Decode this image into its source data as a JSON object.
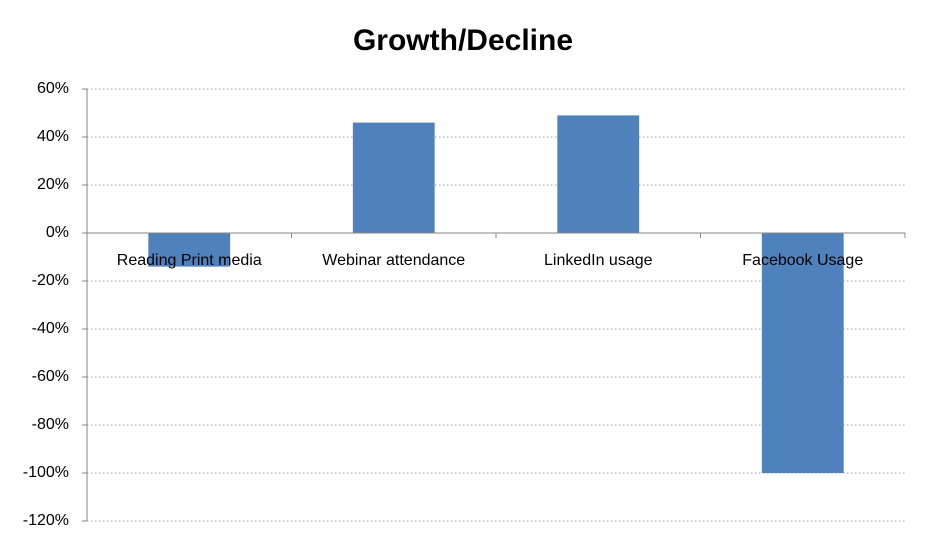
{
  "chart_data": {
    "type": "bar",
    "title": "Growth/Decline",
    "categories": [
      "Reading Print media",
      "Webinar attendance",
      "LinkedIn usage",
      "Facebook Usage"
    ],
    "values": [
      -14,
      46,
      49,
      -100
    ],
    "color": "#4f81bd",
    "ylim": [
      -120,
      60
    ],
    "yticks": [
      {
        "value": -120,
        "label": "-120%"
      },
      {
        "value": -100,
        "label": "-100%"
      },
      {
        "value": -80,
        "label": "-80%"
      },
      {
        "value": -60,
        "label": "-60%"
      },
      {
        "value": -40,
        "label": "-40%"
      },
      {
        "value": -20,
        "label": "-20%"
      },
      {
        "value": 0,
        "label": "0%"
      },
      {
        "value": 20,
        "label": "20%"
      },
      {
        "value": 40,
        "label": "40%"
      },
      {
        "value": 60,
        "label": "60%"
      }
    ],
    "grid": true
  }
}
